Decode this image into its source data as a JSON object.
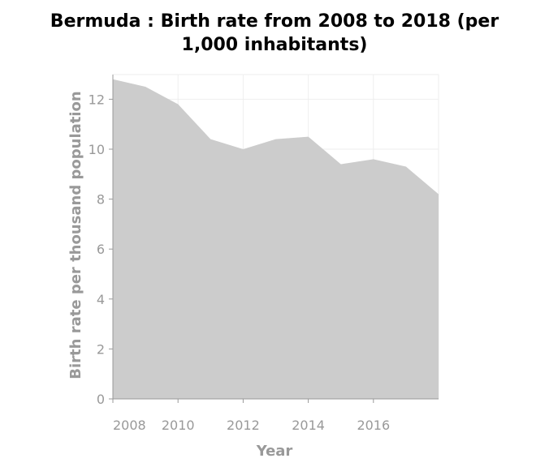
{
  "chart_data": {
    "type": "area",
    "title_line1": "Bermuda : Birth rate from 2008 to 2018 (per",
    "title_line2": "1,000 inhabitants)",
    "xlabel": "Year",
    "ylabel": "Birth rate per thousand population",
    "x": [
      2008,
      2009,
      2010,
      2011,
      2012,
      2013,
      2014,
      2015,
      2016,
      2017,
      2018
    ],
    "y": [
      12.8,
      12.5,
      11.8,
      10.4,
      10.0,
      10.4,
      10.5,
      9.4,
      9.6,
      9.3,
      8.2
    ],
    "xlim": [
      2008,
      2018
    ],
    "ylim": [
      0,
      13
    ],
    "x_ticks": [
      2008,
      2010,
      2012,
      2014,
      2016
    ],
    "x_tick_labels": [
      "2008",
      "2010",
      "2012",
      "2014",
      "2016"
    ],
    "y_ticks": [
      0,
      2,
      4,
      6,
      8,
      10,
      12
    ],
    "y_tick_labels": [
      "0",
      "2",
      "4",
      "6",
      "8",
      "10",
      "12"
    ],
    "grid": true,
    "legend": "none",
    "colors": {
      "fill": "#cccccc",
      "grid": "#eeeeee",
      "axis": "#999999",
      "tick_text": "#999999",
      "title": "#000000"
    }
  }
}
